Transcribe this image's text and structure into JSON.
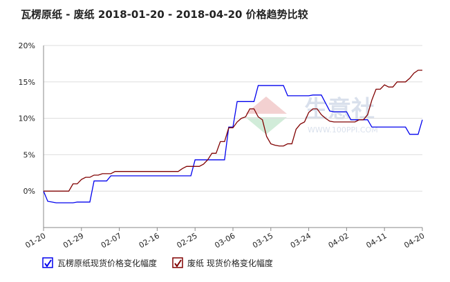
{
  "chart_data": {
    "type": "line",
    "title": "瓦楞原纸 - 废纸 2018-01-20 - 2018-04-20 价格趋势比较",
    "watermark": {
      "brand": "生意社",
      "url": "WWW.100PPI.COM"
    },
    "categories": [
      "01-20",
      null,
      null,
      null,
      null,
      null,
      null,
      null,
      null,
      "01-29",
      null,
      null,
      null,
      null,
      null,
      null,
      null,
      null,
      "02-07",
      null,
      null,
      null,
      null,
      null,
      null,
      null,
      null,
      "02-16",
      null,
      null,
      null,
      null,
      null,
      null,
      null,
      null,
      "02-25",
      null,
      null,
      null,
      null,
      null,
      null,
      null,
      null,
      "03-06",
      null,
      null,
      null,
      null,
      null,
      null,
      null,
      null,
      "03-15",
      null,
      null,
      null,
      null,
      null,
      null,
      null,
      null,
      "03-24",
      null,
      null,
      null,
      null,
      null,
      null,
      null,
      null,
      "04-02",
      null,
      null,
      null,
      null,
      null,
      null,
      null,
      null,
      "04-11",
      null,
      null,
      null,
      null,
      null,
      null,
      null,
      null,
      "04-20"
    ],
    "series": [
      {
        "name": "瓦楞原纸现货价格变化幅度",
        "color": "#0000ee",
        "values": [
          0,
          -1.4,
          -1.5,
          -1.6,
          -1.6,
          -1.6,
          -1.6,
          -1.6,
          -1.5,
          -1.5,
          -1.5,
          -1.5,
          1.4,
          1.4,
          1.4,
          1.4,
          2.1,
          2.1,
          2.1,
          2.1,
          2.1,
          2.1,
          2.1,
          2.1,
          2.1,
          2.1,
          2.1,
          2.1,
          2.1,
          2.1,
          2.1,
          2.1,
          2.1,
          2.1,
          2.1,
          2.1,
          4.3,
          4.3,
          4.3,
          4.3,
          4.3,
          4.3,
          4.3,
          4.3,
          8.8,
          8.8,
          12.3,
          12.3,
          12.3,
          12.3,
          12.3,
          14.5,
          14.5,
          14.5,
          14.5,
          14.5,
          14.5,
          14.5,
          13.1,
          13.1,
          13.1,
          13.1,
          13.1,
          13.1,
          13.2,
          13.2,
          13.2,
          12.1,
          11.0,
          10.9,
          10.9,
          10.9,
          10.9,
          9.8,
          9.8,
          9.8,
          9.8,
          9.8,
          8.8,
          8.8,
          8.8,
          8.8,
          8.8,
          8.8,
          8.8,
          8.8,
          8.8,
          7.8,
          7.8,
          7.8,
          9.8
        ]
      },
      {
        "name": "废纸 现货价格变化幅度",
        "color": "#800000",
        "values": [
          0,
          0,
          0,
          0,
          0,
          0,
          0,
          1.0,
          1.0,
          1.6,
          1.9,
          1.9,
          2.2,
          2.2,
          2.4,
          2.4,
          2.4,
          2.7,
          2.7,
          2.7,
          2.7,
          2.7,
          2.7,
          2.7,
          2.7,
          2.7,
          2.7,
          2.7,
          2.7,
          2.7,
          2.7,
          2.7,
          2.7,
          3.1,
          3.4,
          3.4,
          3.4,
          3.4,
          3.7,
          4.3,
          5.2,
          5.2,
          6.8,
          6.8,
          8.7,
          8.7,
          9.5,
          10.0,
          10.2,
          11.3,
          11.3,
          10.2,
          9.8,
          7.5,
          6.5,
          6.3,
          6.2,
          6.2,
          6.5,
          6.5,
          8.5,
          9.2,
          9.5,
          10.8,
          11.3,
          11.3,
          10.5,
          10.0,
          9.6,
          9.5,
          9.5,
          9.5,
          9.5,
          9.5,
          9.5,
          9.8,
          9.8,
          10.5,
          12.5,
          14.0,
          14.0,
          14.6,
          14.3,
          14.3,
          15.0,
          15.0,
          15.0,
          15.5,
          16.2,
          16.6,
          16.6
        ]
      }
    ],
    "ylim": [
      -5,
      20
    ],
    "yticks": [
      {
        "value": 0,
        "label": "0%"
      },
      {
        "value": 5,
        "label": "5%"
      },
      {
        "value": 10,
        "label": "10%"
      },
      {
        "value": 15,
        "label": "15%"
      },
      {
        "value": 20,
        "label": "20%"
      }
    ],
    "grid": true
  }
}
